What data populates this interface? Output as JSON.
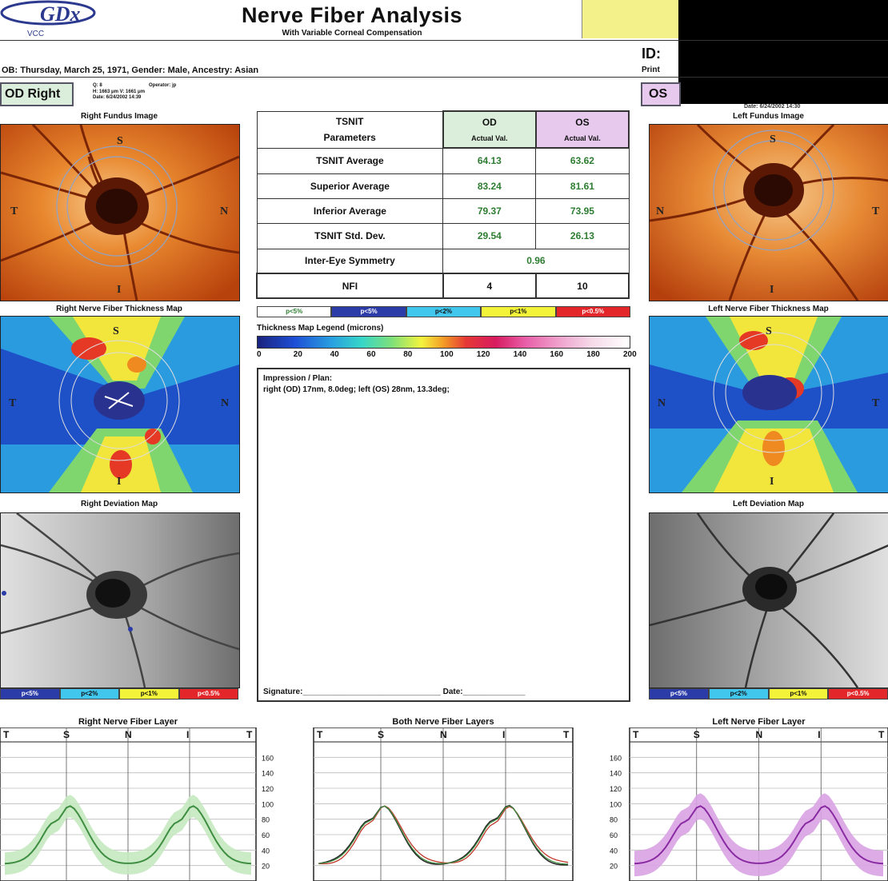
{
  "header": {
    "logo_text": "GDx",
    "logo_sub": "VCC",
    "title": "Nerve Fiber Analysis",
    "subtitle": "With Variable Corneal Compensation",
    "id_label": "ID:",
    "print_label": "Print",
    "dob_line": "OB: Thursday, March 25, 1971, Gender: Male, Ancestry: Asian"
  },
  "od": {
    "label": "OD Right",
    "info_line1": "Q: 8",
    "info_line2": "H: 1663 μm V: 1661 μm",
    "info_line3": "Date: 6/24/2002 14:39",
    "operator": "Operator: jp"
  },
  "os": {
    "label": "OS",
    "date_fragment": "Date: 6/24/2002 14:30"
  },
  "image_labels": {
    "right_fundus": "Right Fundus Image",
    "left_fundus": "Left Fundus Image",
    "right_thickness": "Right Nerve Fiber Thickness Map",
    "left_thickness": "Left Nerve Fiber Thickness Map",
    "right_deviation": "Right Deviation Map",
    "left_deviation": "Left Deviation Map"
  },
  "table": {
    "header_params_1": "TSNIT",
    "header_params_2": "Parameters",
    "header_od": "OD",
    "header_os": "OS",
    "header_actual": "Actual Val.",
    "rows": [
      {
        "label": "TSNIT Average",
        "od": "64.13",
        "os": "63.62"
      },
      {
        "label": "Superior Average",
        "od": "83.24",
        "os": "81.61"
      },
      {
        "label": "Inferior Average",
        "od": "79.37",
        "os": "73.95"
      },
      {
        "label": "TSNIT Std. Dev.",
        "od": "29.54",
        "os": "26.13"
      }
    ],
    "symmetry_label": "Inter-Eye Symmetry",
    "symmetry_value": "0.96",
    "nfi_label": "NFI",
    "nfi_od": "4",
    "nfi_os": "10"
  },
  "p_legend": [
    "p<5%",
    "p<5%",
    "p<2%",
    "p<1%",
    "p<0.5%"
  ],
  "p_legend_colors": [
    "#ffffff",
    "#2b3ba8",
    "#41c6ee",
    "#f3f33a",
    "#e2262a"
  ],
  "thickness_legend": {
    "label": "Thickness Map Legend (microns)",
    "ticks": [
      "0",
      "20",
      "40",
      "60",
      "80",
      "100",
      "120",
      "140",
      "160",
      "180",
      "200"
    ]
  },
  "impression": {
    "title": "Impression / Plan:",
    "text": "right (OD) 17nm, 8.0deg; left (OS) 28nm, 13.3deg;",
    "signature": "Signature:_______________________________ Date:______________"
  },
  "graphs": {
    "right_title": "Right Nerve Fiber Layer",
    "both_title": "Both Nerve Fiber Layers",
    "left_title": "Left Nerve Fiber Layer",
    "x_labels": [
      "T",
      "S",
      "N",
      "I",
      "T"
    ],
    "y_ticks": [
      "160",
      "140",
      "120",
      "100",
      "80",
      "60",
      "40",
      "20"
    ]
  }
}
